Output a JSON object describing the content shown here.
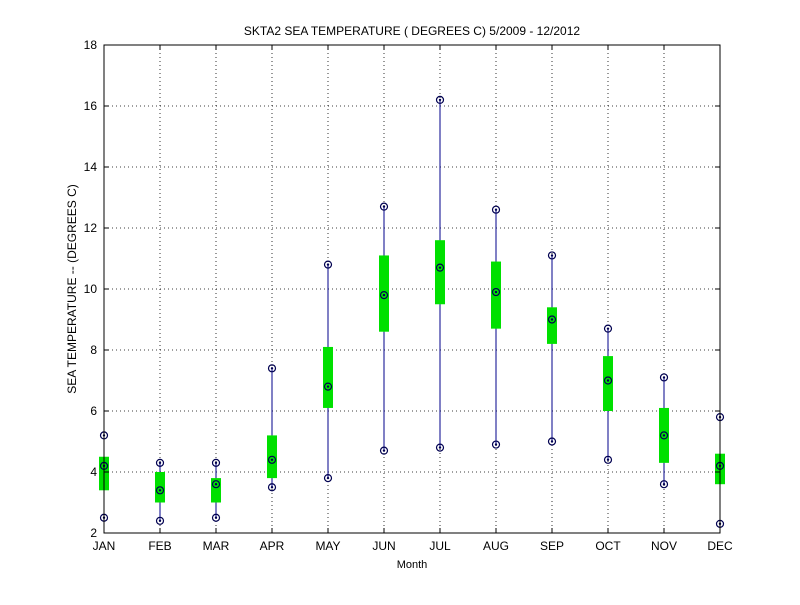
{
  "chart_data": {
    "type": "box",
    "title": "SKTA2  SEA TEMPERATURE ( DEGREES C) 5/2009 - 12/2012",
    "xlabel": "Month",
    "ylabel": "SEA TEMPERATURE -- (DEGREES C)",
    "ylim": [
      2,
      18
    ],
    "yticks": [
      2,
      4,
      6,
      8,
      10,
      12,
      14,
      16,
      18
    ],
    "grid": true,
    "categories": [
      "JAN",
      "FEB",
      "MAR",
      "APR",
      "MAY",
      "JUN",
      "JUL",
      "AUG",
      "SEP",
      "OCT",
      "NOV",
      "DEC"
    ],
    "min": [
      2.5,
      2.4,
      2.5,
      3.5,
      3.8,
      4.7,
      4.8,
      4.9,
      5.0,
      4.4,
      3.6,
      2.3
    ],
    "q1": [
      3.4,
      3.0,
      3.0,
      3.8,
      6.1,
      8.6,
      9.5,
      8.7,
      8.2,
      6.0,
      4.3,
      3.6
    ],
    "median": [
      4.2,
      3.4,
      3.6,
      4.4,
      6.8,
      9.8,
      10.7,
      9.9,
      9.0,
      7.0,
      5.2,
      4.2
    ],
    "q3": [
      4.5,
      4.0,
      3.8,
      5.2,
      8.1,
      11.1,
      11.6,
      10.9,
      9.4,
      7.8,
      6.1,
      4.6
    ],
    "max": [
      5.2,
      4.3,
      4.3,
      7.4,
      10.8,
      12.7,
      16.2,
      12.6,
      11.1,
      8.7,
      7.1,
      5.8
    ],
    "colors": {
      "whisker": "#00008b",
      "box": "#00e000",
      "marker": "#000050",
      "grid": "#000000"
    }
  }
}
